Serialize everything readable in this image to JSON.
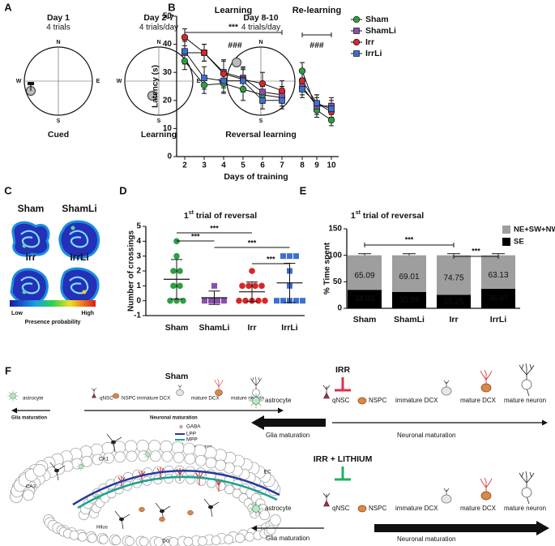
{
  "panel_labels": [
    "A",
    "B",
    "C",
    "D",
    "E",
    "F"
  ],
  "panel_a": {
    "compass": [
      "N",
      "E",
      "S",
      "W"
    ],
    "items": [
      {
        "day": "Day 1",
        "trials": "4 trials",
        "label": "Cued"
      },
      {
        "day": "Day 2-7",
        "trials": "4 trials/day",
        "label": "Learning"
      },
      {
        "day": "Day 8-10",
        "trials": "4 trials/day",
        "label": "Reversal learning"
      }
    ]
  },
  "chart_data": [
    {
      "type": "line",
      "xlabel": "Days of training",
      "ylabel": "Latency (s)",
      "ylim": [
        0,
        50
      ],
      "yticks": [
        0,
        10,
        20,
        30,
        40,
        50
      ],
      "legend": "right",
      "groups": [
        {
          "label": "Learning",
          "categories": [
            "2",
            "3",
            "4",
            "5",
            "6",
            "7"
          ],
          "bracket_text": "***",
          "note": "###"
        },
        {
          "label": "Re-learning",
          "categories": [
            "8",
            "9",
            "10"
          ],
          "note": "###"
        }
      ],
      "series": [
        {
          "name": "Sham",
          "color": "#2e9e44",
          "marker": "circle",
          "values": [
            [
              34,
              25.5,
              26,
              24,
              22,
              21
            ],
            [
              30.5,
              16.5,
              13
            ]
          ],
          "errors": [
            [
              3,
              3,
              3.5,
              4,
              3,
              3
            ],
            [
              3,
              2.5,
              2
            ]
          ]
        },
        {
          "name": "ShamLi",
          "color": "#8a4fae",
          "marker": "square",
          "values": [
            [
              37,
              37,
              30,
              28,
              23,
              22
            ],
            [
              25,
              18,
              18
            ]
          ],
          "errors": [
            [
              4,
              3,
              4,
              4,
              3,
              3
            ],
            [
              3,
              3,
              3
            ]
          ]
        },
        {
          "name": "Irr",
          "color": "#d62728",
          "marker": "circle",
          "values": [
            [
              42.5,
              37,
              29.5,
              27.5,
              26,
              23.5
            ],
            [
              27,
              19,
              16
            ]
          ],
          "errors": [
            [
              3,
              3,
              5,
              4,
              4,
              3.5
            ],
            [
              3,
              3,
              3
            ]
          ]
        },
        {
          "name": "IrrLi",
          "color": "#3c6fd1",
          "marker": "square",
          "values": [
            [
              37.5,
              28,
              27,
              27,
              20,
              20
            ],
            [
              24,
              19,
              17
            ]
          ],
          "errors": [
            [
              4,
              4,
              4,
              4,
              3,
              3
            ],
            [
              3,
              3,
              3
            ]
          ]
        }
      ]
    },
    {
      "type": "dot",
      "title": [
        "1",
        "st",
        " trial of reversal"
      ],
      "ylabel": "Number of crossings",
      "ylim": [
        -1,
        5
      ],
      "yticks": [
        -1,
        0,
        1,
        2,
        3,
        4,
        5
      ],
      "categories": [
        "Sham",
        "ShamLi",
        "Irr",
        "IrrLi"
      ],
      "groups": [
        {
          "color": "#2e9e44",
          "marker": "circle",
          "points": [
            4,
            3,
            2,
            2,
            1,
            1,
            0,
            0,
            0
          ],
          "mean": 1.44,
          "sd": 1.33
        },
        {
          "color": "#8a4fae",
          "marker": "square",
          "points": [
            1,
            0,
            0,
            0,
            0
          ],
          "mean": 0.2,
          "sd": 0.45
        },
        {
          "color": "#d62728",
          "marker": "circle",
          "points": [
            2,
            1,
            1,
            1,
            1,
            0,
            0,
            0,
            0,
            0
          ],
          "mean": 0.6,
          "sd": 0.66
        },
        {
          "color": "#3c6fd1",
          "marker": "square",
          "points": [
            3,
            3,
            3,
            2,
            1,
            0,
            0,
            0,
            0,
            0
          ],
          "mean": 1.2,
          "sd": 1.32
        }
      ],
      "comparisons": [
        {
          "pair": [
            "Sham",
            "ShamLi"
          ],
          "text": "***"
        },
        {
          "pair": [
            "Sham",
            "Irr"
          ],
          "text": "***"
        },
        {
          "pair": [
            "ShamLi",
            "IrrLi"
          ],
          "text": "***"
        },
        {
          "pair": [
            "Irr",
            "IrrLi"
          ],
          "text": "***"
        }
      ]
    },
    {
      "type": "stacked_bar",
      "title": [
        "1",
        "st",
        " trial of reversal"
      ],
      "ylabel": "% Time spent",
      "ylim": [
        0,
        150
      ],
      "yticks": [
        0,
        50,
        100,
        150
      ],
      "categories": [
        "Sham",
        "ShamLi",
        "Irr",
        "IrrLi"
      ],
      "series": [
        {
          "name": "SE",
          "color": "#000000",
          "label_color": "#ffffff",
          "values": [
            34.91,
            30.99,
            25.25,
            36.87
          ]
        },
        {
          "name": "NE+SW+NW",
          "color": "#9e9e9e",
          "label_color": "#111111",
          "values": [
            65.09,
            69.01,
            74.75,
            63.13
          ],
          "errors": [
            3,
            3,
            3,
            3
          ]
        }
      ],
      "comparisons": [
        {
          "pair": [
            "Sham",
            "Irr"
          ],
          "text": "***"
        },
        {
          "pair": [
            "Irr",
            "IrrLi"
          ],
          "text": "***"
        }
      ]
    }
  ],
  "panel_c": {
    "labels": [
      "Sham",
      "ShamLi",
      "Irr",
      "IrrLi"
    ],
    "colors": [
      "#2e9e44",
      "#8a4fae",
      "#d62728",
      "#3c6fd1"
    ],
    "colorbar": {
      "low": "Low",
      "high": "High",
      "title": "Presence probability"
    }
  },
  "panel_f": {
    "sham": {
      "title": "Sham",
      "cells": [
        "astrocyte",
        "qNSC",
        "NSPC",
        "immature DCX",
        "mature DCX",
        "mature neuron"
      ],
      "glia": "Glia maturation",
      "neuronal": "Neuronal maturation",
      "legend": [
        "GABA",
        "LPP",
        "MPP",
        "interneuron"
      ],
      "regions": [
        "CA1",
        "CA3",
        "EC",
        "Hilus",
        "DG"
      ]
    },
    "irr": {
      "title": "IRR",
      "cells": [
        "astrocyte",
        "qNSC",
        "NSPC",
        "immature DCX",
        "mature DCX",
        "mature neuron"
      ],
      "glia": "Glia maturation",
      "neuronal": "Neuronal maturation"
    },
    "irr_lithium": {
      "title": "IRR + LITHIUM",
      "cells": [
        "astrocyte",
        "qNSC",
        "NSPC",
        "immature DCX",
        "mature DCX",
        "mature neuron"
      ],
      "glia": "Glia maturation",
      "neuronal": "Neuronal maturation"
    }
  }
}
